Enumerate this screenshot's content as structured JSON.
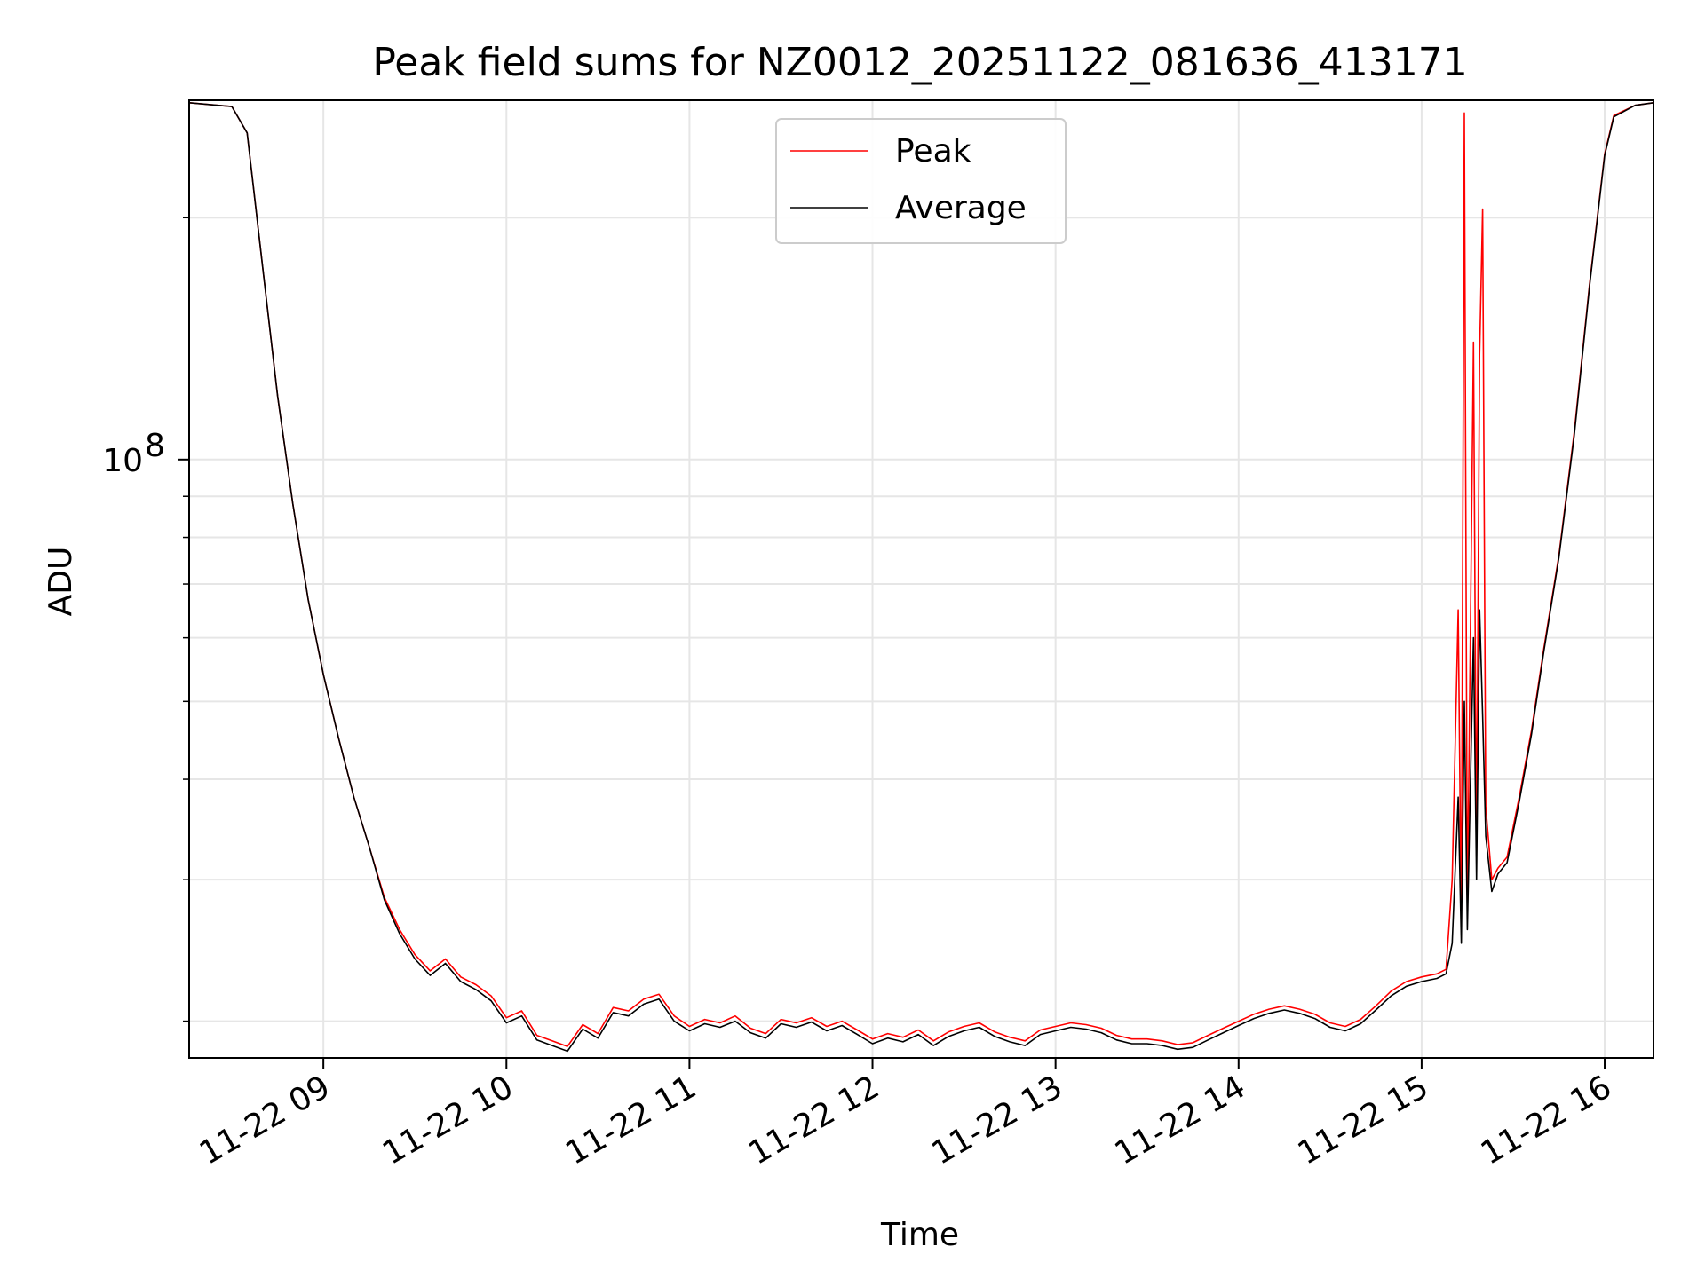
{
  "chart_data": {
    "type": "line",
    "title": "Peak field sums for NZ0012_20251122_081636_413171",
    "xlabel": "Time",
    "ylabel": "ADU",
    "y_scale": "log",
    "x_range": [
      "2025-11-22 08:16",
      "2025-11-22 16:16"
    ],
    "ylim": [
      18000000,
      280000000
    ],
    "x_ticks": [
      {
        "time": "2025-11-22 09:00",
        "label": "11-22 09"
      },
      {
        "time": "2025-11-22 10:00",
        "label": "11-22 10"
      },
      {
        "time": "2025-11-22 11:00",
        "label": "11-22 11"
      },
      {
        "time": "2025-11-22 12:00",
        "label": "11-22 12"
      },
      {
        "time": "2025-11-22 13:00",
        "label": "11-22 13"
      },
      {
        "time": "2025-11-22 14:00",
        "label": "11-22 14"
      },
      {
        "time": "2025-11-22 15:00",
        "label": "11-22 15"
      },
      {
        "time": "2025-11-22 16:00",
        "label": "11-22 16"
      }
    ],
    "y_major_tick": {
      "value": 100000000,
      "label_base": "10",
      "label_exp": "8"
    },
    "y_minor_ticks": [
      20000000,
      30000000,
      40000000,
      50000000,
      60000000,
      70000000,
      80000000,
      90000000,
      200000000
    ],
    "grid": true,
    "legend_position": "upper center",
    "series": [
      {
        "name": "Peak",
        "color": "#ff0000",
        "points": [
          [
            "2025-11-22 08:16",
            278000000
          ],
          [
            "2025-11-22 08:30",
            275000000
          ],
          [
            "2025-11-22 08:35",
            255000000
          ],
          [
            "2025-11-22 08:40",
            175000000
          ],
          [
            "2025-11-22 08:45",
            120000000
          ],
          [
            "2025-11-22 08:50",
            88000000
          ],
          [
            "2025-11-22 08:55",
            67000000
          ],
          [
            "2025-11-22 09:00",
            54000000
          ],
          [
            "2025-11-22 09:05",
            45000000
          ],
          [
            "2025-11-22 09:10",
            38000000
          ],
          [
            "2025-11-22 09:15",
            33000000
          ],
          [
            "2025-11-22 09:20",
            28500000
          ],
          [
            "2025-11-22 09:25",
            26000000
          ],
          [
            "2025-11-22 09:30",
            24200000
          ],
          [
            "2025-11-22 09:35",
            23100000
          ],
          [
            "2025-11-22 09:40",
            23900000
          ],
          [
            "2025-11-22 09:45",
            22700000
          ],
          [
            "2025-11-22 09:50",
            22200000
          ],
          [
            "2025-11-22 09:55",
            21500000
          ],
          [
            "2025-11-22 10:00",
            20200000
          ],
          [
            "2025-11-22 10:05",
            20600000
          ],
          [
            "2025-11-22 10:10",
            19200000
          ],
          [
            "2025-11-22 10:15",
            18900000
          ],
          [
            "2025-11-22 10:20",
            18600000
          ],
          [
            "2025-11-22 10:25",
            19800000
          ],
          [
            "2025-11-22 10:30",
            19300000
          ],
          [
            "2025-11-22 10:35",
            20800000
          ],
          [
            "2025-11-22 10:40",
            20600000
          ],
          [
            "2025-11-22 10:45",
            21300000
          ],
          [
            "2025-11-22 10:50",
            21600000
          ],
          [
            "2025-11-22 10:55",
            20300000
          ],
          [
            "2025-11-22 11:00",
            19700000
          ],
          [
            "2025-11-22 11:05",
            20100000
          ],
          [
            "2025-11-22 11:10",
            19900000
          ],
          [
            "2025-11-22 11:15",
            20300000
          ],
          [
            "2025-11-22 11:20",
            19600000
          ],
          [
            "2025-11-22 11:25",
            19300000
          ],
          [
            "2025-11-22 11:30",
            20100000
          ],
          [
            "2025-11-22 11:35",
            19900000
          ],
          [
            "2025-11-22 11:40",
            20200000
          ],
          [
            "2025-11-22 11:45",
            19700000
          ],
          [
            "2025-11-22 11:50",
            20000000
          ],
          [
            "2025-11-22 11:55",
            19500000
          ],
          [
            "2025-11-22 12:00",
            19000000
          ],
          [
            "2025-11-22 12:05",
            19300000
          ],
          [
            "2025-11-22 12:10",
            19100000
          ],
          [
            "2025-11-22 12:15",
            19500000
          ],
          [
            "2025-11-22 12:20",
            18900000
          ],
          [
            "2025-11-22 12:25",
            19400000
          ],
          [
            "2025-11-22 12:30",
            19700000
          ],
          [
            "2025-11-22 12:35",
            19900000
          ],
          [
            "2025-11-22 12:40",
            19400000
          ],
          [
            "2025-11-22 12:45",
            19100000
          ],
          [
            "2025-11-22 12:50",
            18900000
          ],
          [
            "2025-11-22 12:55",
            19500000
          ],
          [
            "2025-11-22 13:00",
            19700000
          ],
          [
            "2025-11-22 13:05",
            19900000
          ],
          [
            "2025-11-22 13:10",
            19800000
          ],
          [
            "2025-11-22 13:15",
            19600000
          ],
          [
            "2025-11-22 13:20",
            19200000
          ],
          [
            "2025-11-22 13:25",
            19000000
          ],
          [
            "2025-11-22 13:30",
            19000000
          ],
          [
            "2025-11-22 13:35",
            18900000
          ],
          [
            "2025-11-22 13:40",
            18700000
          ],
          [
            "2025-11-22 13:45",
            18800000
          ],
          [
            "2025-11-22 13:50",
            19200000
          ],
          [
            "2025-11-22 13:55",
            19600000
          ],
          [
            "2025-11-22 14:00",
            20000000
          ],
          [
            "2025-11-22 14:05",
            20400000
          ],
          [
            "2025-11-22 14:10",
            20700000
          ],
          [
            "2025-11-22 14:15",
            20900000
          ],
          [
            "2025-11-22 14:20",
            20700000
          ],
          [
            "2025-11-22 14:25",
            20400000
          ],
          [
            "2025-11-22 14:30",
            19900000
          ],
          [
            "2025-11-22 14:35",
            19700000
          ],
          [
            "2025-11-22 14:40",
            20100000
          ],
          [
            "2025-11-22 14:45",
            20900000
          ],
          [
            "2025-11-22 14:50",
            21800000
          ],
          [
            "2025-11-22 14:55",
            22400000
          ],
          [
            "2025-11-22 15:00",
            22700000
          ],
          [
            "2025-11-22 15:05",
            22900000
          ],
          [
            "2025-11-22 15:08",
            23200000
          ],
          [
            "2025-11-22 15:10",
            30000000
          ],
          [
            "2025-11-22 15:12",
            65000000
          ],
          [
            "2025-11-22 15:13",
            26000000
          ],
          [
            "2025-11-22 15:14",
            270000000
          ],
          [
            "2025-11-22 15:15",
            27000000
          ],
          [
            "2025-11-22 15:17",
            140000000
          ],
          [
            "2025-11-22 15:18",
            32000000
          ],
          [
            "2025-11-22 15:19",
            135000000
          ],
          [
            "2025-11-22 15:20",
            205000000
          ],
          [
            "2025-11-22 15:21",
            37000000
          ],
          [
            "2025-11-22 15:23",
            30000000
          ],
          [
            "2025-11-22 15:25",
            31000000
          ],
          [
            "2025-11-22 15:28",
            32000000
          ],
          [
            "2025-11-22 15:32",
            38000000
          ],
          [
            "2025-11-22 15:36",
            46000000
          ],
          [
            "2025-11-22 15:40",
            58000000
          ],
          [
            "2025-11-22 15:45",
            76000000
          ],
          [
            "2025-11-22 15:50",
            108000000
          ],
          [
            "2025-11-22 15:55",
            165000000
          ],
          [
            "2025-11-22 16:00",
            240000000
          ],
          [
            "2025-11-22 16:03",
            268000000
          ],
          [
            "2025-11-22 16:10",
            276000000
          ],
          [
            "2025-11-22 16:16",
            278000000
          ]
        ]
      },
      {
        "name": "Average",
        "color": "#000000",
        "points": [
          [
            "2025-11-22 08:16",
            278000000
          ],
          [
            "2025-11-22 08:30",
            275000000
          ],
          [
            "2025-11-22 08:35",
            255000000
          ],
          [
            "2025-11-22 08:40",
            175000000
          ],
          [
            "2025-11-22 08:45",
            120000000
          ],
          [
            "2025-11-22 08:50",
            88000000
          ],
          [
            "2025-11-22 08:55",
            67000000
          ],
          [
            "2025-11-22 09:00",
            54000000
          ],
          [
            "2025-11-22 09:05",
            45000000
          ],
          [
            "2025-11-22 09:10",
            38000000
          ],
          [
            "2025-11-22 09:15",
            33000000
          ],
          [
            "2025-11-22 09:20",
            28300000
          ],
          [
            "2025-11-22 09:25",
            25700000
          ],
          [
            "2025-11-22 09:30",
            23900000
          ],
          [
            "2025-11-22 09:35",
            22800000
          ],
          [
            "2025-11-22 09:40",
            23600000
          ],
          [
            "2025-11-22 09:45",
            22400000
          ],
          [
            "2025-11-22 09:50",
            21900000
          ],
          [
            "2025-11-22 09:55",
            21200000
          ],
          [
            "2025-11-22 10:00",
            19900000
          ],
          [
            "2025-11-22 10:05",
            20300000
          ],
          [
            "2025-11-22 10:10",
            18950000
          ],
          [
            "2025-11-22 10:15",
            18650000
          ],
          [
            "2025-11-22 10:20",
            18350000
          ],
          [
            "2025-11-22 10:25",
            19550000
          ],
          [
            "2025-11-22 10:30",
            19050000
          ],
          [
            "2025-11-22 10:35",
            20500000
          ],
          [
            "2025-11-22 10:40",
            20300000
          ],
          [
            "2025-11-22 10:45",
            21000000
          ],
          [
            "2025-11-22 10:50",
            21300000
          ],
          [
            "2025-11-22 10:55",
            20000000
          ],
          [
            "2025-11-22 11:00",
            19450000
          ],
          [
            "2025-11-22 11:05",
            19850000
          ],
          [
            "2025-11-22 11:10",
            19650000
          ],
          [
            "2025-11-22 11:15",
            20000000
          ],
          [
            "2025-11-22 11:20",
            19350000
          ],
          [
            "2025-11-22 11:25",
            19050000
          ],
          [
            "2025-11-22 11:30",
            19850000
          ],
          [
            "2025-11-22 11:35",
            19650000
          ],
          [
            "2025-11-22 11:40",
            19950000
          ],
          [
            "2025-11-22 11:45",
            19450000
          ],
          [
            "2025-11-22 11:50",
            19750000
          ],
          [
            "2025-11-22 11:55",
            19250000
          ],
          [
            "2025-11-22 12:00",
            18750000
          ],
          [
            "2025-11-22 12:05",
            19050000
          ],
          [
            "2025-11-22 12:10",
            18850000
          ],
          [
            "2025-11-22 12:15",
            19250000
          ],
          [
            "2025-11-22 12:20",
            18650000
          ],
          [
            "2025-11-22 12:25",
            19150000
          ],
          [
            "2025-11-22 12:30",
            19450000
          ],
          [
            "2025-11-22 12:35",
            19650000
          ],
          [
            "2025-11-22 12:40",
            19150000
          ],
          [
            "2025-11-22 12:45",
            18850000
          ],
          [
            "2025-11-22 12:50",
            18650000
          ],
          [
            "2025-11-22 12:55",
            19250000
          ],
          [
            "2025-11-22 13:00",
            19450000
          ],
          [
            "2025-11-22 13:05",
            19650000
          ],
          [
            "2025-11-22 13:10",
            19550000
          ],
          [
            "2025-11-22 13:15",
            19350000
          ],
          [
            "2025-11-22 13:20",
            18950000
          ],
          [
            "2025-11-22 13:25",
            18750000
          ],
          [
            "2025-11-22 13:30",
            18750000
          ],
          [
            "2025-11-22 13:35",
            18650000
          ],
          [
            "2025-11-22 13:40",
            18450000
          ],
          [
            "2025-11-22 13:45",
            18550000
          ],
          [
            "2025-11-22 13:50",
            18950000
          ],
          [
            "2025-11-22 13:55",
            19350000
          ],
          [
            "2025-11-22 14:00",
            19750000
          ],
          [
            "2025-11-22 14:05",
            20150000
          ],
          [
            "2025-11-22 14:10",
            20450000
          ],
          [
            "2025-11-22 14:15",
            20650000
          ],
          [
            "2025-11-22 14:20",
            20450000
          ],
          [
            "2025-11-22 14:25",
            20150000
          ],
          [
            "2025-11-22 14:30",
            19650000
          ],
          [
            "2025-11-22 14:35",
            19450000
          ],
          [
            "2025-11-22 14:40",
            19850000
          ],
          [
            "2025-11-22 14:45",
            20650000
          ],
          [
            "2025-11-22 14:50",
            21500000
          ],
          [
            "2025-11-22 14:55",
            22100000
          ],
          [
            "2025-11-22 15:00",
            22400000
          ],
          [
            "2025-11-22 15:05",
            22600000
          ],
          [
            "2025-11-22 15:08",
            22900000
          ],
          [
            "2025-11-22 15:10",
            25000000
          ],
          [
            "2025-11-22 15:12",
            38000000
          ],
          [
            "2025-11-22 15:13",
            25000000
          ],
          [
            "2025-11-22 15:14",
            50000000
          ],
          [
            "2025-11-22 15:15",
            26000000
          ],
          [
            "2025-11-22 15:17",
            60000000
          ],
          [
            "2025-11-22 15:18",
            30000000
          ],
          [
            "2025-11-22 15:19",
            65000000
          ],
          [
            "2025-11-22 15:20",
            48000000
          ],
          [
            "2025-11-22 15:21",
            34000000
          ],
          [
            "2025-11-22 15:23",
            29000000
          ],
          [
            "2025-11-22 15:25",
            30500000
          ],
          [
            "2025-11-22 15:28",
            31500000
          ],
          [
            "2025-11-22 15:32",
            37500000
          ],
          [
            "2025-11-22 15:36",
            45500000
          ],
          [
            "2025-11-22 15:40",
            57500000
          ],
          [
            "2025-11-22 15:45",
            75500000
          ],
          [
            "2025-11-22 15:50",
            107000000
          ],
          [
            "2025-11-22 15:55",
            164000000
          ],
          [
            "2025-11-22 16:00",
            239000000
          ],
          [
            "2025-11-22 16:03",
            267000000
          ],
          [
            "2025-11-22 16:10",
            276000000
          ],
          [
            "2025-11-22 16:16",
            278000000
          ]
        ]
      }
    ]
  }
}
